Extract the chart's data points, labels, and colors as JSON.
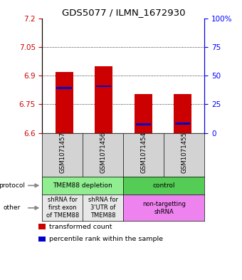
{
  "title": "GDS5077 / ILMN_1672930",
  "samples": [
    "GSM1071457",
    "GSM1071456",
    "GSM1071454",
    "GSM1071455"
  ],
  "ylim": [
    6.6,
    7.2
  ],
  "y_ticks_left": [
    6.6,
    6.75,
    6.9,
    7.05,
    7.2
  ],
  "y_ticks_right": [
    0,
    25,
    50,
    75,
    100
  ],
  "bar_bottoms": [
    6.6,
    6.6,
    6.6,
    6.6
  ],
  "bar_tops": [
    6.92,
    6.95,
    6.805,
    6.805
  ],
  "blue_marks": [
    6.835,
    6.845,
    6.645,
    6.648
  ],
  "bar_color": "#cc0000",
  "blue_color": "#0000cc",
  "protocol_row": {
    "cells": [
      {
        "label": "TMEM88 depletion",
        "cols": [
          0,
          1
        ],
        "color": "#90ee90"
      },
      {
        "label": "control",
        "cols": [
          2,
          3
        ],
        "color": "#55cc55"
      }
    ]
  },
  "other_row": {
    "cells": [
      {
        "label": "shRNA for\nfirst exon\nof TMEM88",
        "cols": [
          0
        ],
        "color": "#e8e8e8"
      },
      {
        "label": "shRNA for\n3'UTR of\nTMEM88",
        "cols": [
          1
        ],
        "color": "#e8e8e8"
      },
      {
        "label": "non-targetting\nshRNA",
        "cols": [
          2,
          3
        ],
        "color": "#ee82ee"
      }
    ]
  },
  "legend_items": [
    {
      "color": "#cc0000",
      "label": "transformed count"
    },
    {
      "color": "#0000cc",
      "label": "percentile rank within the sample"
    }
  ],
  "bar_width": 0.45,
  "title_fontsize": 9.5
}
